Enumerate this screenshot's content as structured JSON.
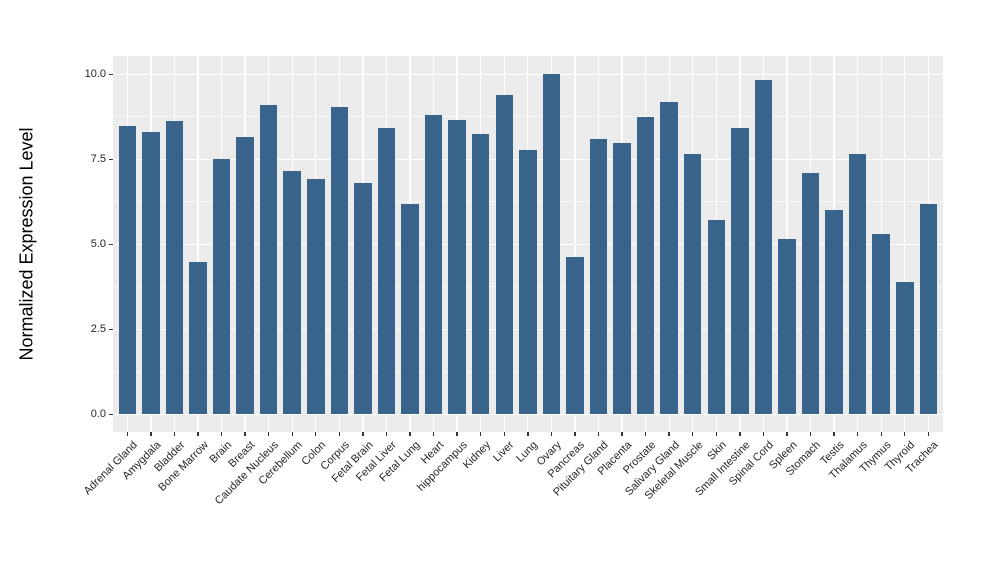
{
  "chart_data": {
    "type": "bar",
    "title": "",
    "xlabel": "",
    "ylabel": "Normalized Expression Level",
    "ylim": [
      0,
      10.5
    ],
    "grid": true,
    "legend_position": "none",
    "ytick_labels": [
      "0.0",
      "2.5",
      "5.0",
      "7.5",
      "10.0"
    ],
    "yticks_major": [
      0,
      2.5,
      5,
      7.5,
      10
    ],
    "yticks_minor": [
      1.25,
      3.75,
      6.25,
      8.75
    ],
    "categories": [
      "Adrenal Gland",
      "Amygdala",
      "Bladder",
      "Bone Marrow",
      "Brain",
      "Breast",
      "Caudate Nucleus",
      "Cerebellum",
      "Colon",
      "Corpus",
      "Fetal Brain",
      "Fetal Liver",
      "Fetal Lung",
      "Heart",
      "hippocampus",
      "Kidney",
      "Liver",
      "Lung",
      "Ovary",
      "Pancreas",
      "Pituitary Gland",
      "Placenta",
      "Prostate",
      "Salivary Gland",
      "Skeletal Muscle",
      "Skin",
      "Small Intestine",
      "Spinal Cord",
      "Spleen",
      "Stomach",
      "Testis",
      "Thalamus",
      "Thymus",
      "Thyroid",
      "Trachea"
    ],
    "values": [
      8.46,
      8.27,
      8.6,
      4.47,
      7.49,
      8.13,
      9.07,
      7.12,
      6.89,
      9.01,
      6.77,
      8.4,
      6.17,
      8.78,
      8.63,
      8.22,
      9.38,
      7.75,
      9.98,
      4.6,
      8.08,
      7.97,
      8.73,
      9.17,
      7.63,
      5.7,
      8.41,
      9.81,
      5.13,
      7.08,
      5.98,
      7.63,
      5.29,
      3.88,
      6.16
    ],
    "colors": {
      "bar": "#38648C",
      "panel_background": "#EBEBEB",
      "gridline": "#FFFFFF",
      "tick_label": "#262626",
      "axis_title": "#000000",
      "figure_background": "#FFFFFF"
    }
  }
}
